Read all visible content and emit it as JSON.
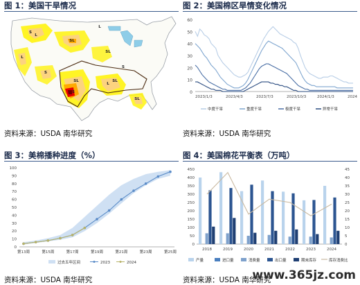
{
  "figures": [
    {
      "title": "图 1：美国干旱情况",
      "source": "资料来源：USDA 南华研究"
    },
    {
      "title": "图 2：美国棉区旱情变化情况",
      "source": "资料来源：USDA 南华研究"
    },
    {
      "title": "图 3：美棉播种进度（%）",
      "source": "资料来源：USDA 南华研究"
    },
    {
      "title": "图 4：美国棉花平衡表（万吨）",
      "source": "资料来源：USDA 南华研究"
    }
  ],
  "map": {
    "labels": [
      "S",
      "L",
      "SL",
      "SL",
      "L",
      "S",
      "SL",
      "S",
      "L",
      "SL",
      "SL",
      "L",
      "S"
    ],
    "colors": {
      "d0": "#fff200",
      "d1": "#fcd37f",
      "d2": "#ffaa00",
      "d3": "#e60000",
      "d4": "#730000",
      "bound": "#4a2a10"
    }
  },
  "watermark": "www.365jz.com",
  "chart_data": [
    {
      "type": "line",
      "x_ticks": [
        "2023/1/3",
        "2023/4/3",
        "2023/7/3",
        "2023/10/3",
        "2024/1/3",
        "2024/4/3"
      ],
      "ylim": [
        0,
        60
      ],
      "y_ticks": [
        0,
        10,
        20,
        30,
        40,
        50,
        60
      ],
      "n_points": 70,
      "series": [
        {
          "name": "中度干旱",
          "color": "#b7cde6",
          "values": [
            50,
            46,
            52,
            50,
            47,
            46,
            44,
            40,
            38,
            36,
            30,
            27,
            24,
            22,
            20,
            18,
            16,
            14,
            13,
            12,
            12,
            13,
            14,
            16,
            20,
            24,
            28,
            32,
            36,
            40,
            44,
            47,
            50,
            52,
            54,
            52,
            50,
            48,
            47,
            46,
            45,
            44,
            43,
            41,
            40,
            36,
            30,
            25,
            20,
            17,
            15,
            14,
            13,
            12,
            11,
            11,
            12,
            12,
            12,
            13,
            13,
            12,
            11,
            10,
            9,
            8,
            8,
            7,
            7,
            7
          ]
        },
        {
          "name": "重度干旱",
          "color": "#7ea5cf",
          "values": [
            40,
            38,
            36,
            33,
            30,
            28,
            25,
            22,
            20,
            18,
            15,
            12,
            10,
            8,
            6,
            5,
            4,
            3,
            3,
            3,
            4,
            5,
            7,
            10,
            14,
            18,
            22,
            26,
            30,
            34,
            37,
            40,
            42,
            41,
            40,
            39,
            38,
            37,
            36,
            34,
            32,
            30,
            28,
            26,
            24,
            20,
            16,
            12,
            9,
            7,
            6,
            5,
            5,
            4,
            4,
            4,
            4,
            4,
            4,
            4,
            4,
            4,
            3,
            3,
            3,
            3,
            3,
            3,
            3,
            3
          ]
        },
        {
          "name": "极度干旱",
          "color": "#4a6fa5",
          "values": [
            22,
            20,
            17,
            14,
            12,
            10,
            8,
            7,
            6,
            5,
            4,
            3,
            2,
            2,
            1,
            1,
            1,
            1,
            1,
            1,
            1,
            2,
            3,
            5,
            7,
            10,
            13,
            16,
            19,
            21,
            22,
            23,
            23,
            22,
            21,
            20,
            19,
            18,
            17,
            16,
            15,
            13,
            11,
            9,
            7,
            5,
            4,
            3,
            2,
            2,
            1,
            1,
            1,
            1,
            1,
            1,
            1,
            1,
            1,
            1,
            1,
            1,
            1,
            1,
            1,
            1,
            1,
            1,
            1,
            1
          ]
        },
        {
          "name": "异常干旱",
          "color": "#2b4c80",
          "values": [
            8,
            8,
            7,
            6,
            5,
            4,
            3,
            2,
            2,
            1,
            1,
            1,
            0,
            0,
            0,
            0,
            0,
            0,
            0,
            0,
            0,
            0,
            1,
            2,
            3,
            4,
            5,
            6,
            7,
            8,
            8,
            8,
            8,
            7,
            7,
            6,
            6,
            5,
            5,
            4,
            4,
            3,
            2,
            1,
            1,
            0,
            0,
            0,
            0,
            0,
            0,
            0,
            0,
            0,
            0,
            0,
            0,
            0,
            0,
            0,
            0,
            0,
            0,
            0,
            0,
            0,
            0,
            0,
            0,
            0
          ]
        }
      ]
    },
    {
      "type": "line",
      "categories": [
        "第13周",
        "第14周",
        "第15周",
        "第16周",
        "第17周",
        "第18周",
        "第19周",
        "第20周",
        "第21周",
        "第22周",
        "第23周",
        "第24周",
        "第25周"
      ],
      "x_tick_labels": [
        "第13周",
        "第15周",
        "第17周",
        "第19周",
        "第21周",
        "第23周",
        "第25周"
      ],
      "ylim": [
        0,
        100
      ],
      "y_ticks": [
        0,
        10,
        20,
        30,
        40,
        50,
        60,
        70,
        80,
        90,
        100
      ],
      "band": {
        "name": "过去五年区间",
        "low": [
          3,
          5,
          7,
          9,
          12,
          20,
          30,
          42,
          55,
          68,
          78,
          86,
          90
        ],
        "high": [
          6,
          8,
          11,
          15,
          24,
          38,
          52,
          66,
          78,
          86,
          92,
          95,
          97
        ]
      },
      "series": [
        {
          "name": "2023",
          "values": [
            4,
            6,
            8,
            11,
            15,
            24,
            35,
            46,
            60,
            71,
            80,
            89,
            95
          ]
        },
        {
          "name": "2024",
          "values": [
            4,
            6,
            8,
            11,
            15,
            24,
            null,
            null,
            null,
            null,
            null,
            null,
            null
          ]
        }
      ]
    },
    {
      "type": "bar",
      "categories": [
        "2018",
        "2019",
        "2020",
        "2021",
        "2022",
        "2023",
        "2024"
      ],
      "x_tick_labels": [
        "2018",
        "2019",
        "2020",
        "2021",
        "2022",
        "2023",
        "2024"
      ],
      "ylim_left": [
        0,
        450
      ],
      "y_ticks_left": [
        0,
        50,
        100,
        150,
        200,
        250,
        300,
        350,
        400,
        450
      ],
      "ylim_right": [
        0,
        45
      ],
      "y_ticks_right": [
        0,
        5,
        10,
        15,
        20,
        25,
        30,
        35,
        40,
        45
      ],
      "series": [
        {
          "name": "产量",
          "color": "#b9d3ec",
          "values": [
            400,
            432,
            318,
            382,
            315,
            263,
            350
          ]
        },
        {
          "name": "进口量",
          "color": "#4a7fbf",
          "values": [
            0,
            0,
            0,
            0,
            0,
            0,
            0
          ]
        },
        {
          "name": "消费量",
          "color": "#7ea1cc",
          "values": [
            65,
            65,
            50,
            55,
            45,
            45,
            40
          ]
        },
        {
          "name": "出口量",
          "color": "#2c5591",
          "values": [
            323,
            337,
            357,
            318,
            305,
            265,
            280
          ]
        },
        {
          "name": "期末库存",
          "color": "#1f3f73",
          "values": [
            105,
            157,
            68,
            80,
            88,
            60,
            80
          ]
        },
        {
          "name": "库存消费比",
          "color": "#c9b9a0",
          "axis": "right",
          "values": [
            30,
            43,
            18,
            27,
            25,
            17,
            24
          ]
        }
      ]
    }
  ]
}
